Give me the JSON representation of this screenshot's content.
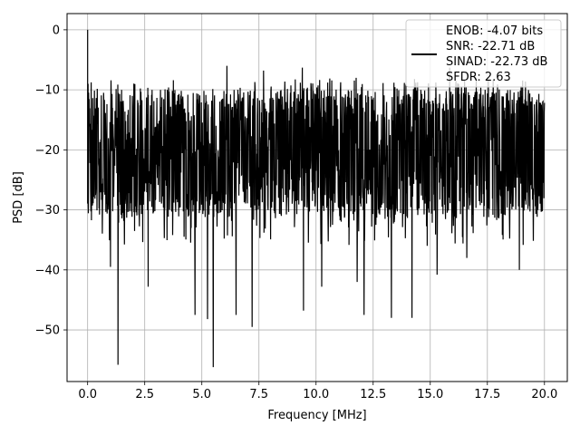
{
  "chart_data": {
    "type": "line",
    "title": "",
    "xlabel": "Frequency [MHz]",
    "ylabel": "PSD [dB]",
    "xlim": [
      -0.9,
      21.0
    ],
    "ylim": [
      -58.6,
      2.7
    ],
    "xticks": [
      0.0,
      2.5,
      5.0,
      7.5,
      10.0,
      12.5,
      15.0,
      17.5,
      20.0
    ],
    "xtick_labels": [
      "0.0",
      "2.5",
      "5.0",
      "7.5",
      "10.0",
      "12.5",
      "15.0",
      "17.5",
      "20.0"
    ],
    "yticks": [
      0,
      -10,
      -20,
      -30,
      -40,
      -50
    ],
    "ytick_labels": [
      "0",
      "−10",
      "−20",
      "−30",
      "−40",
      "−50"
    ],
    "grid": true,
    "legend_position": "top-right",
    "legend_lines": [
      "ENOB: -4.07 bits",
      "SNR: -22.71 dB",
      "SINAD: -22.73 dB",
      "SFDR: 2.63"
    ],
    "series_color": "#000000",
    "series": [
      {
        "name": "",
        "x_start": 0.0,
        "x_end": 20.0,
        "noise_floor_db": [
          -30,
          -10
        ],
        "peaks": [
          {
            "x": 0.0,
            "y": 0.0
          },
          {
            "x": 1.33,
            "y": -55.8
          },
          {
            "x": 5.5,
            "y": -56.2
          },
          {
            "x": 5.25,
            "y": -48.2
          },
          {
            "x": 4.7,
            "y": -47.5
          },
          {
            "x": 6.5,
            "y": -47.5
          },
          {
            "x": 7.2,
            "y": -49.5
          },
          {
            "x": 9.45,
            "y": -46.8
          },
          {
            "x": 10.25,
            "y": -42.8
          },
          {
            "x": 11.8,
            "y": -42.0
          },
          {
            "x": 12.1,
            "y": -47.5
          },
          {
            "x": 13.3,
            "y": -48.0
          },
          {
            "x": 14.2,
            "y": -48.0
          },
          {
            "x": 15.3,
            "y": -40.8
          },
          {
            "x": 18.9,
            "y": -40.0
          },
          {
            "x": 16.6,
            "y": -38.0
          },
          {
            "x": 2.65,
            "y": -42.8
          },
          {
            "x": 1.0,
            "y": -39.5
          },
          {
            "x": 6.1,
            "y": -6.0
          },
          {
            "x": 9.4,
            "y": -6.3
          },
          {
            "x": 15.85,
            "y": -6.3
          },
          {
            "x": 7.7,
            "y": -6.8
          }
        ]
      }
    ]
  }
}
